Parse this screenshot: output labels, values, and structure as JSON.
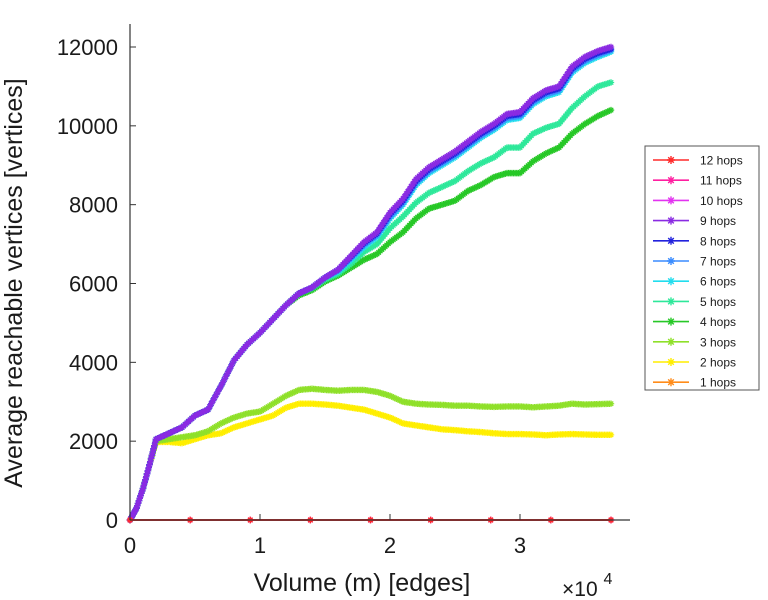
{
  "chart_data": {
    "type": "line",
    "title": "",
    "xlabel": "Volume (m) [edges]",
    "ylabel": "Average reachable vertices [vertices]",
    "x_multiplier": "×10",
    "x_multiplier_exp": "4",
    "xlim": [
      0,
      3.7
    ],
    "ylim": [
      0,
      12000
    ],
    "x_ticks": [
      0,
      1,
      2,
      3
    ],
    "x_tick_labels": [
      "0",
      "1",
      "2",
      "3"
    ],
    "y_ticks": [
      0,
      2000,
      4000,
      6000,
      8000,
      10000,
      12000
    ],
    "y_tick_labels": [
      "0",
      "2000",
      "4000",
      "6000",
      "8000",
      "10000",
      "12000"
    ],
    "grid": false,
    "legend_position": "right",
    "marker": "asterisk",
    "series": [
      {
        "name": "12 hops",
        "color": "#ff2a2a",
        "x": [
          0,
          3.7
        ],
        "y": [
          0,
          0
        ]
      },
      {
        "name": "11 hops",
        "color": "#ff1fa0",
        "x": [
          0,
          3.7
        ],
        "y": [
          0,
          0
        ]
      },
      {
        "name": "10 hops",
        "color": "#e233f0",
        "x": [
          0,
          3.7
        ],
        "y": [
          0,
          0
        ]
      },
      {
        "name": "9 hops",
        "color": "#8a2be2",
        "x": [
          0,
          0.05,
          0.1,
          0.15,
          0.2,
          0.3,
          0.4,
          0.5,
          0.6,
          0.7,
          0.8,
          0.9,
          1.0,
          1.1,
          1.2,
          1.3,
          1.4,
          1.5,
          1.6,
          1.7,
          1.8,
          1.9,
          2.0,
          2.1,
          2.2,
          2.3,
          2.4,
          2.5,
          2.6,
          2.7,
          2.8,
          2.9,
          3.0,
          3.1,
          3.2,
          3.3,
          3.4,
          3.5,
          3.6,
          3.7
        ],
        "y": [
          0,
          300,
          800,
          1400,
          2050,
          2200,
          2350,
          2650,
          2800,
          3400,
          4050,
          4450,
          4750,
          5100,
          5450,
          5750,
          5900,
          6150,
          6350,
          6700,
          7050,
          7300,
          7800,
          8150,
          8650,
          8950,
          9150,
          9350,
          9600,
          9850,
          10050,
          10300,
          10350,
          10700,
          10900,
          11000,
          11500,
          11750,
          11900,
          12000
        ]
      },
      {
        "name": "8 hops",
        "color": "#2222dd",
        "x": [
          0,
          0.05,
          0.1,
          0.15,
          0.2,
          0.3,
          0.4,
          0.5,
          0.6,
          0.7,
          0.8,
          0.9,
          1.0,
          1.1,
          1.2,
          1.3,
          1.4,
          1.5,
          1.6,
          1.7,
          1.8,
          1.9,
          2.0,
          2.1,
          2.2,
          2.3,
          2.4,
          2.5,
          2.6,
          2.7,
          2.8,
          2.9,
          3.0,
          3.1,
          3.2,
          3.3,
          3.4,
          3.5,
          3.6,
          3.7
        ],
        "y": [
          0,
          300,
          800,
          1400,
          2050,
          2200,
          2350,
          2650,
          2800,
          3400,
          4050,
          4450,
          4750,
          5100,
          5450,
          5750,
          5900,
          6150,
          6350,
          6680,
          7020,
          7270,
          7760,
          8100,
          8600,
          8900,
          9100,
          9300,
          9550,
          9800,
          10000,
          10250,
          10300,
          10650,
          10850,
          10950,
          11450,
          11700,
          11850,
          11950
        ]
      },
      {
        "name": "7 hops",
        "color": "#3a8cff",
        "x": [
          0,
          0.05,
          0.1,
          0.15,
          0.2,
          0.3,
          0.4,
          0.5,
          0.6,
          0.7,
          0.8,
          0.9,
          1.0,
          1.1,
          1.2,
          1.3,
          1.4,
          1.5,
          1.6,
          1.7,
          1.8,
          1.9,
          2.0,
          2.1,
          2.2,
          2.3,
          2.4,
          2.5,
          2.6,
          2.7,
          2.8,
          2.9,
          3.0,
          3.1,
          3.2,
          3.3,
          3.4,
          3.5,
          3.6,
          3.7
        ],
        "y": [
          0,
          300,
          800,
          1400,
          2050,
          2200,
          2350,
          2650,
          2800,
          3400,
          4050,
          4450,
          4750,
          5100,
          5450,
          5750,
          5900,
          6150,
          6330,
          6650,
          6980,
          7230,
          7700,
          8050,
          8550,
          8850,
          9050,
          9250,
          9500,
          9750,
          9950,
          10200,
          10250,
          10600,
          10800,
          10900,
          11400,
          11650,
          11800,
          11920
        ]
      },
      {
        "name": "6 hops",
        "color": "#22ddee",
        "x": [
          0,
          0.05,
          0.1,
          0.15,
          0.2,
          0.3,
          0.4,
          0.5,
          0.6,
          0.7,
          0.8,
          0.9,
          1.0,
          1.1,
          1.2,
          1.3,
          1.4,
          1.5,
          1.6,
          1.7,
          1.8,
          1.9,
          2.0,
          2.1,
          2.2,
          2.3,
          2.4,
          2.5,
          2.6,
          2.7,
          2.8,
          2.9,
          3.0,
          3.1,
          3.2,
          3.3,
          3.4,
          3.5,
          3.6,
          3.7
        ],
        "y": [
          0,
          300,
          800,
          1400,
          2050,
          2200,
          2350,
          2650,
          2800,
          3400,
          4050,
          4450,
          4750,
          5100,
          5450,
          5750,
          5900,
          6150,
          6300,
          6600,
          6920,
          7180,
          7650,
          8000,
          8500,
          8800,
          9000,
          9200,
          9450,
          9700,
          9900,
          10150,
          10200,
          10550,
          10750,
          10850,
          11350,
          11600,
          11750,
          11880
        ]
      },
      {
        "name": "5 hops",
        "color": "#2ee89a",
        "x": [
          0,
          0.05,
          0.1,
          0.15,
          0.2,
          0.3,
          0.4,
          0.5,
          0.6,
          0.7,
          0.8,
          0.9,
          1.0,
          1.1,
          1.2,
          1.3,
          1.4,
          1.5,
          1.6,
          1.7,
          1.8,
          1.9,
          2.0,
          2.1,
          2.2,
          2.3,
          2.4,
          2.5,
          2.6,
          2.7,
          2.8,
          2.9,
          3.0,
          3.1,
          3.2,
          3.3,
          3.4,
          3.5,
          3.6,
          3.7
        ],
        "y": [
          0,
          300,
          800,
          1400,
          2050,
          2200,
          2350,
          2650,
          2800,
          3400,
          4050,
          4450,
          4750,
          5100,
          5450,
          5750,
          5880,
          6100,
          6250,
          6500,
          6800,
          7000,
          7400,
          7700,
          8050,
          8300,
          8450,
          8600,
          8850,
          9050,
          9200,
          9450,
          9450,
          9800,
          9950,
          10050,
          10450,
          10750,
          11000,
          11100
        ]
      },
      {
        "name": "4 hops",
        "color": "#27c827",
        "x": [
          0,
          0.05,
          0.1,
          0.15,
          0.2,
          0.3,
          0.4,
          0.5,
          0.6,
          0.7,
          0.8,
          0.9,
          1.0,
          1.1,
          1.2,
          1.3,
          1.4,
          1.5,
          1.6,
          1.7,
          1.8,
          1.9,
          2.0,
          2.1,
          2.2,
          2.3,
          2.4,
          2.5,
          2.6,
          2.7,
          2.8,
          2.9,
          3.0,
          3.1,
          3.2,
          3.3,
          3.4,
          3.5,
          3.6,
          3.7
        ],
        "y": [
          0,
          300,
          800,
          1400,
          2050,
          2200,
          2350,
          2650,
          2800,
          3400,
          4050,
          4450,
          4750,
          5100,
          5450,
          5700,
          5830,
          6050,
          6200,
          6400,
          6600,
          6750,
          7050,
          7300,
          7650,
          7900,
          8000,
          8100,
          8350,
          8500,
          8700,
          8800,
          8800,
          9100,
          9300,
          9450,
          9800,
          10050,
          10250,
          10400
        ]
      },
      {
        "name": "3 hops",
        "color": "#8fe02a",
        "x": [
          0,
          0.05,
          0.1,
          0.15,
          0.2,
          0.3,
          0.4,
          0.5,
          0.6,
          0.7,
          0.8,
          0.9,
          1.0,
          1.1,
          1.2,
          1.3,
          1.4,
          1.5,
          1.6,
          1.7,
          1.8,
          1.9,
          2.0,
          2.1,
          2.2,
          2.3,
          2.4,
          2.5,
          2.6,
          2.7,
          2.8,
          2.9,
          3.0,
          3.1,
          3.2,
          3.3,
          3.4,
          3.5,
          3.6,
          3.7
        ],
        "y": [
          0,
          300,
          800,
          1400,
          2000,
          2050,
          2100,
          2150,
          2250,
          2450,
          2600,
          2700,
          2750,
          2950,
          3150,
          3300,
          3330,
          3300,
          3280,
          3300,
          3300,
          3250,
          3150,
          3000,
          2950,
          2930,
          2920,
          2900,
          2900,
          2880,
          2870,
          2880,
          2880,
          2860,
          2880,
          2900,
          2950,
          2930,
          2940,
          2950
        ]
      },
      {
        "name": "2 hops",
        "color": "#ffee00",
        "x": [
          0,
          0.05,
          0.1,
          0.15,
          0.2,
          0.3,
          0.4,
          0.5,
          0.6,
          0.7,
          0.8,
          0.9,
          1.0,
          1.1,
          1.2,
          1.3,
          1.4,
          1.5,
          1.6,
          1.7,
          1.8,
          1.9,
          2.0,
          2.1,
          2.2,
          2.3,
          2.4,
          2.5,
          2.6,
          2.7,
          2.8,
          2.9,
          3.0,
          3.1,
          3.2,
          3.3,
          3.4,
          3.5,
          3.6,
          3.7
        ],
        "y": [
          0,
          300,
          800,
          1400,
          1980,
          1980,
          1950,
          2050,
          2150,
          2200,
          2350,
          2450,
          2550,
          2650,
          2850,
          2950,
          2950,
          2930,
          2900,
          2850,
          2800,
          2700,
          2600,
          2450,
          2400,
          2350,
          2300,
          2280,
          2250,
          2230,
          2200,
          2180,
          2180,
          2170,
          2150,
          2170,
          2180,
          2170,
          2160,
          2160
        ]
      },
      {
        "name": "1 hops",
        "color": "#ff8c1a",
        "x": [
          0,
          3.7
        ],
        "y": [
          0,
          0
        ]
      }
    ]
  }
}
